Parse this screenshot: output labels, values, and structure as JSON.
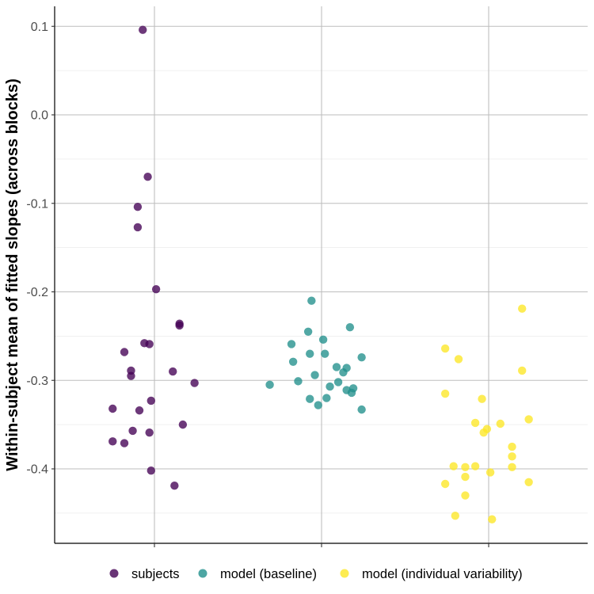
{
  "chart_data": {
    "type": "scatter",
    "ylabel": "Within-subject mean of fitted slopes (across blocks)",
    "xlabel": "",
    "ylim": [
      -0.485,
      0.12
    ],
    "yticks": [
      0.1,
      0.0,
      -0.1,
      -0.2,
      -0.3,
      -0.4
    ],
    "ytick_labels": [
      "0.1",
      "0.0",
      "-0.1",
      "-0.2",
      "-0.3",
      "-0.4"
    ],
    "categories": [
      "subjects",
      "model (baseline)",
      "model (individual variability)"
    ],
    "x_tick_labels": [
      "",
      "",
      ""
    ],
    "grid": true,
    "legend_position": "bottom",
    "series": [
      {
        "name": "subjects",
        "color": "#440154",
        "points": [
          {
            "x": 0.93,
            "y": 0.096
          },
          {
            "x": 0.96,
            "y": -0.07
          },
          {
            "x": 0.9,
            "y": -0.104
          },
          {
            "x": 0.9,
            "y": -0.127
          },
          {
            "x": 1.01,
            "y": -0.197
          },
          {
            "x": 1.15,
            "y": -0.236
          },
          {
            "x": 1.15,
            "y": -0.238
          },
          {
            "x": 0.94,
            "y": -0.258
          },
          {
            "x": 0.97,
            "y": -0.259
          },
          {
            "x": 0.82,
            "y": -0.268
          },
          {
            "x": 0.86,
            "y": -0.289
          },
          {
            "x": 1.11,
            "y": -0.29
          },
          {
            "x": 0.86,
            "y": -0.295
          },
          {
            "x": 1.24,
            "y": -0.303
          },
          {
            "x": 0.98,
            "y": -0.323
          },
          {
            "x": 0.75,
            "y": -0.332
          },
          {
            "x": 0.91,
            "y": -0.334
          },
          {
            "x": 1.17,
            "y": -0.35
          },
          {
            "x": 0.87,
            "y": -0.357
          },
          {
            "x": 0.97,
            "y": -0.359
          },
          {
            "x": 0.75,
            "y": -0.369
          },
          {
            "x": 0.82,
            "y": -0.371
          },
          {
            "x": 0.98,
            "y": -0.402
          },
          {
            "x": 1.12,
            "y": -0.419
          }
        ]
      },
      {
        "name": "model (baseline)",
        "color": "#21908C",
        "points": [
          {
            "x": 1.94,
            "y": -0.21
          },
          {
            "x": 2.17,
            "y": -0.24
          },
          {
            "x": 1.92,
            "y": -0.245
          },
          {
            "x": 2.01,
            "y": -0.254
          },
          {
            "x": 1.82,
            "y": -0.259
          },
          {
            "x": 1.93,
            "y": -0.27
          },
          {
            "x": 2.02,
            "y": -0.27
          },
          {
            "x": 2.24,
            "y": -0.274
          },
          {
            "x": 1.83,
            "y": -0.279
          },
          {
            "x": 2.09,
            "y": -0.285
          },
          {
            "x": 2.15,
            "y": -0.286
          },
          {
            "x": 2.13,
            "y": -0.291
          },
          {
            "x": 1.96,
            "y": -0.294
          },
          {
            "x": 1.86,
            "y": -0.301
          },
          {
            "x": 2.1,
            "y": -0.302
          },
          {
            "x": 1.69,
            "y": -0.305
          },
          {
            "x": 2.05,
            "y": -0.307
          },
          {
            "x": 2.19,
            "y": -0.309
          },
          {
            "x": 2.15,
            "y": -0.311
          },
          {
            "x": 2.18,
            "y": -0.314
          },
          {
            "x": 2.03,
            "y": -0.32
          },
          {
            "x": 1.93,
            "y": -0.321
          },
          {
            "x": 1.98,
            "y": -0.328
          },
          {
            "x": 2.24,
            "y": -0.333
          }
        ]
      },
      {
        "name": "model (individual variability)",
        "color": "#FDE725",
        "points": [
          {
            "x": 3.2,
            "y": -0.219
          },
          {
            "x": 2.74,
            "y": -0.264
          },
          {
            "x": 2.82,
            "y": -0.276
          },
          {
            "x": 3.2,
            "y": -0.289
          },
          {
            "x": 2.74,
            "y": -0.315
          },
          {
            "x": 2.96,
            "y": -0.321
          },
          {
            "x": 3.24,
            "y": -0.344
          },
          {
            "x": 2.92,
            "y": -0.348
          },
          {
            "x": 3.07,
            "y": -0.349
          },
          {
            "x": 2.99,
            "y": -0.355
          },
          {
            "x": 2.97,
            "y": -0.359
          },
          {
            "x": 3.14,
            "y": -0.375
          },
          {
            "x": 3.14,
            "y": -0.386
          },
          {
            "x": 2.79,
            "y": -0.397
          },
          {
            "x": 2.86,
            "y": -0.398
          },
          {
            "x": 2.92,
            "y": -0.397
          },
          {
            "x": 3.14,
            "y": -0.398
          },
          {
            "x": 3.01,
            "y": -0.404
          },
          {
            "x": 2.86,
            "y": -0.409
          },
          {
            "x": 3.24,
            "y": -0.415
          },
          {
            "x": 2.74,
            "y": -0.417
          },
          {
            "x": 2.86,
            "y": -0.43
          },
          {
            "x": 2.8,
            "y": -0.453
          },
          {
            "x": 3.02,
            "y": -0.457
          }
        ]
      }
    ]
  }
}
